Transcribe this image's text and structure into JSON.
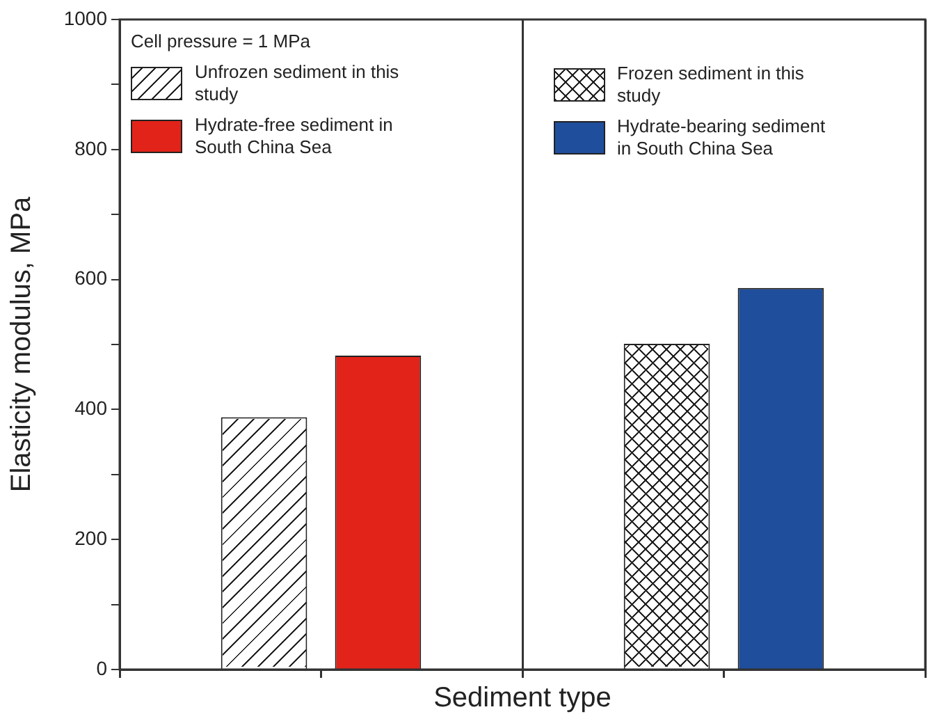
{
  "chart_data": {
    "type": "bar",
    "xlabel": "Sediment type",
    "ylabel": "Elasticity modulus, MPa",
    "legend_title": "Cell pressure = 1 MPa",
    "legend": "top",
    "grid": "x",
    "categories": [
      null,
      null
    ],
    "series": [
      {
        "name": "Unfrozen sediment in this study",
        "color": "#ffffff",
        "values": [
          388,
          null
        ]
      },
      {
        "name": "Hydrate-free sediment in South China Sea",
        "color": "#e2231a",
        "values": [
          483,
          null
        ]
      },
      {
        "name": "Frozen sediment in this study",
        "color": "#ffffff",
        "values": [
          null,
          501
        ]
      },
      {
        "name": "Hydrate-bearing sediment in South China Sea",
        "color": "#1f4e9c",
        "values": [
          null,
          587
        ]
      }
    ],
    "ylim": [
      0,
      1000
    ],
    "yticks": [
      0,
      {
        "value": 100,
        "label": null
      },
      200,
      {
        "value": 300,
        "label": null
      },
      400,
      {
        "value": 500,
        "label": null
      },
      600,
      {
        "value": 700,
        "label": null
      },
      800,
      {
        "value": 900,
        "label": null
      },
      1000
    ]
  }
}
